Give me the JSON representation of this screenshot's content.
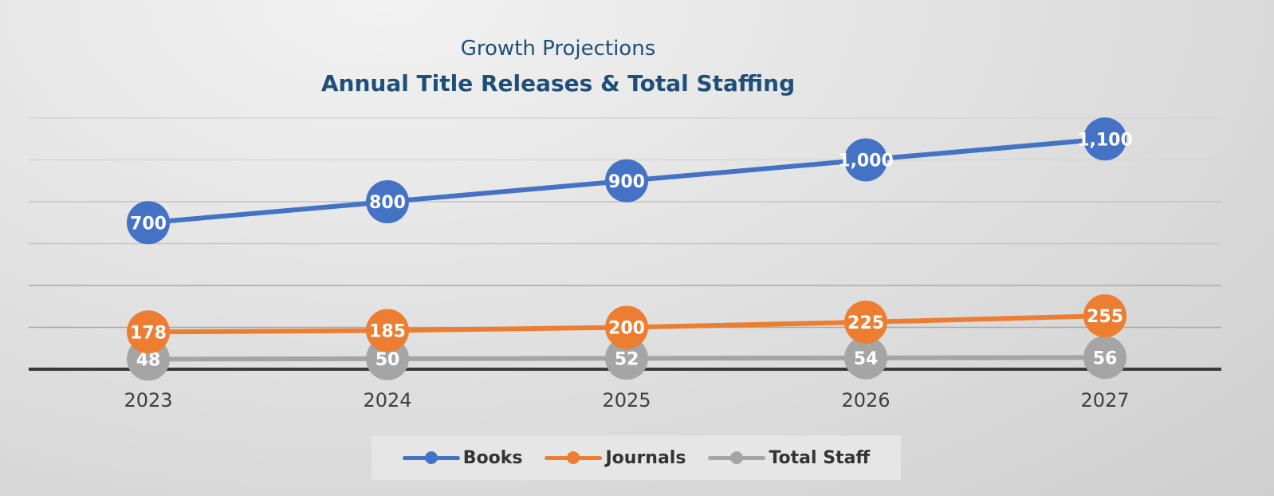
{
  "chart_data": {
    "type": "line",
    "title": "Growth Projections",
    "subtitle": "Annual Title Releases & Total Staffing",
    "categories": [
      "2023",
      "2024",
      "2025",
      "2026",
      "2027"
    ],
    "series": [
      {
        "name": "Books",
        "values": [
          700,
          800,
          900,
          1000,
          1100
        ],
        "labels": [
          "700",
          "800",
          "900",
          "1,000",
          "1,100"
        ],
        "color": "#4472c4"
      },
      {
        "name": "Journals",
        "values": [
          178,
          185,
          200,
          225,
          255
        ],
        "labels": [
          "178",
          "185",
          "200",
          "225",
          "255"
        ],
        "color": "#ed7d31"
      },
      {
        "name": "Total Staff",
        "values": [
          48,
          50,
          52,
          54,
          56
        ],
        "labels": [
          "48",
          "50",
          "52",
          "54",
          "56"
        ],
        "color": "#a5a5a5"
      }
    ],
    "ylim": [
      0,
      1200
    ],
    "grid": true,
    "legend": "bottom"
  }
}
